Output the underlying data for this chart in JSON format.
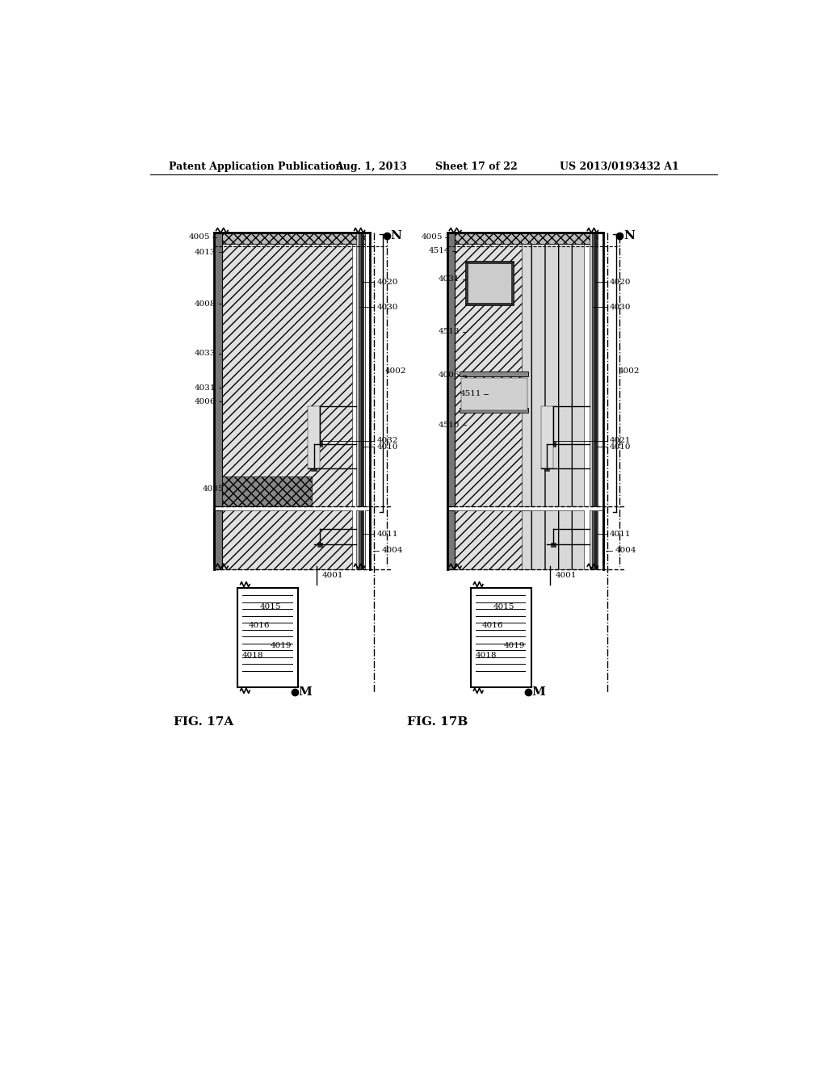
{
  "title_left": "Patent Application Publication",
  "title_mid": "Aug. 1, 2013",
  "title_right1": "Sheet 17 of 22",
  "title_right2": "US 2013/0193432 A1",
  "fig_label_a": "FIG. 17A",
  "fig_label_b": "FIG. 17B",
  "background": "#ffffff",
  "line_color": "#000000"
}
